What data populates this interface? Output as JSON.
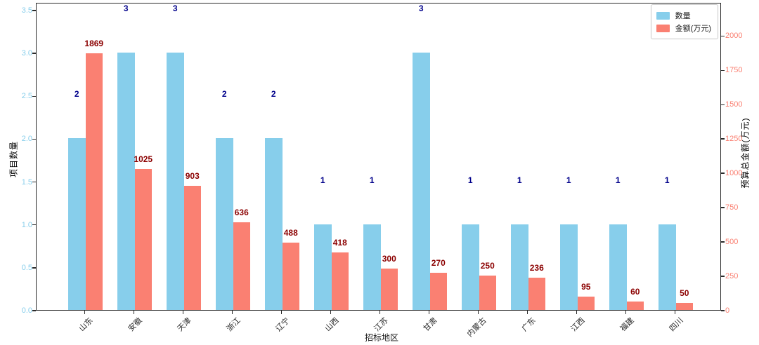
{
  "chart_data": {
    "type": "bar",
    "title": "",
    "xlabel": "招标地区",
    "ylabel_left": "项目数量",
    "ylabel_right": "预算总金额(万元)",
    "categories": [
      "山东",
      "安徽",
      "天津",
      "浙江",
      "辽宁",
      "山西",
      "江苏",
      "甘肃",
      "内蒙古",
      "广东",
      "江西",
      "福建",
      "四川"
    ],
    "series": [
      {
        "name": "数量",
        "axis": "left",
        "color": "#87CEEB",
        "label_color": "#00008B",
        "values": [
          2,
          3,
          3,
          2,
          2,
          1,
          1,
          3,
          1,
          1,
          1,
          1,
          1
        ]
      },
      {
        "name": "金额(万元)",
        "axis": "right",
        "color": "#FA8072",
        "label_color": "#8B0000",
        "values": [
          1869,
          1025,
          903,
          636,
          488,
          418,
          300,
          270,
          250,
          236,
          95,
          60,
          50
        ]
      }
    ],
    "left_axis": {
      "color": "#87CEEB",
      "tick_labels": [
        "0.0",
        "0.5",
        "1.0",
        "1.5",
        "2.0",
        "2.5",
        "3.0",
        "3.5"
      ],
      "tick_values": [
        0,
        0.5,
        1,
        1.5,
        2,
        2.5,
        3,
        3.5
      ],
      "range": [
        0,
        3.59
      ]
    },
    "right_axis": {
      "color": "#FA8072",
      "tick_labels": [
        "0",
        "250",
        "500",
        "750",
        "1000",
        "1250",
        "1500",
        "1750",
        "2000"
      ],
      "tick_values": [
        0,
        250,
        500,
        750,
        1000,
        1250,
        1500,
        1750,
        2000
      ],
      "range": [
        0,
        2242
      ]
    },
    "legend": {
      "position": "top-right",
      "entries": [
        {
          "label": "数量",
          "color": "#87CEEB"
        },
        {
          "label": "金额(万元)",
          "color": "#FA8072"
        }
      ]
    },
    "grid": false,
    "frame_color": "#2b2b2b"
  }
}
